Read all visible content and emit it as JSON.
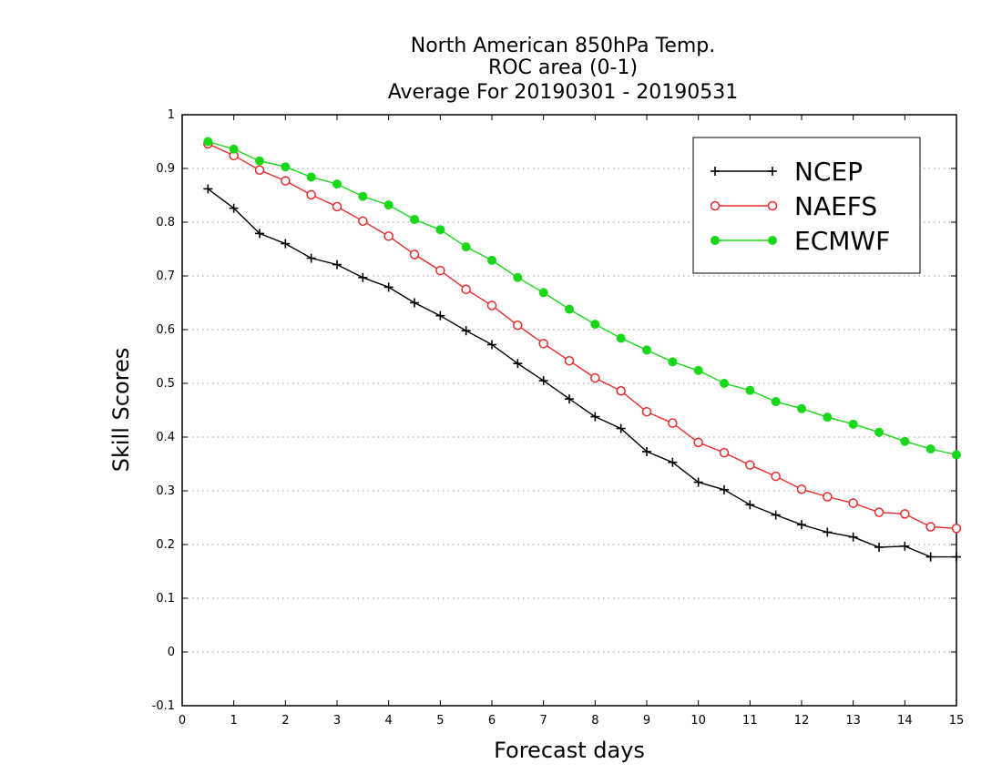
{
  "chart_data": {
    "type": "line",
    "title": [
      "North American 850hPa Temp.",
      "ROC area (0-1)",
      "Average For 20190301 - 20190531"
    ],
    "xlabel": "Forecast days",
    "ylabel": "Skill Scores",
    "xlim": [
      0,
      15
    ],
    "ylim": [
      -0.1,
      1
    ],
    "xticks": [
      "0",
      "1",
      "2",
      "3",
      "4",
      "5",
      "6",
      "7",
      "8",
      "9",
      "10",
      "11",
      "12",
      "13",
      "14",
      "15"
    ],
    "yticks": [
      "-0.1",
      "0",
      "0.1",
      "0.2",
      "0.3",
      "0.4",
      "0.5",
      "0.6",
      "0.7",
      "0.8",
      "0.9",
      "1"
    ],
    "grid": "horizontal dotted",
    "legend_position": "top-right",
    "x": [
      0.5,
      1,
      1.5,
      2,
      2.5,
      3,
      3.5,
      4,
      4.5,
      5,
      5.5,
      6,
      6.5,
      7,
      7.5,
      8,
      8.5,
      9,
      9.5,
      10,
      10.5,
      11,
      11.5,
      12,
      12.5,
      13,
      13.5,
      14,
      14.5,
      15
    ],
    "series": [
      {
        "name": "NCEP",
        "color": "#000000",
        "marker": "plus",
        "values": [
          0.862,
          0.826,
          0.779,
          0.76,
          0.733,
          0.721,
          0.697,
          0.679,
          0.65,
          0.626,
          0.598,
          0.572,
          0.537,
          0.505,
          0.471,
          0.438,
          0.416,
          0.373,
          0.353,
          0.316,
          0.302,
          0.274,
          0.255,
          0.237,
          0.223,
          0.214,
          0.195,
          0.197,
          0.177,
          0.177
        ]
      },
      {
        "name": "NAEFS",
        "color": "#e82c2c",
        "marker": "open-circle",
        "values": [
          0.946,
          0.924,
          0.897,
          0.877,
          0.851,
          0.829,
          0.802,
          0.774,
          0.74,
          0.71,
          0.675,
          0.645,
          0.608,
          0.574,
          0.542,
          0.51,
          0.486,
          0.447,
          0.426,
          0.39,
          0.371,
          0.348,
          0.327,
          0.303,
          0.289,
          0.277,
          0.26,
          0.257,
          0.233,
          0.23
        ]
      },
      {
        "name": "ECMWF",
        "color": "#19d819",
        "marker": "filled-circle",
        "values": [
          0.95,
          0.936,
          0.914,
          0.903,
          0.884,
          0.871,
          0.848,
          0.832,
          0.805,
          0.786,
          0.754,
          0.729,
          0.697,
          0.669,
          0.638,
          0.61,
          0.584,
          0.562,
          0.54,
          0.524,
          0.5,
          0.487,
          0.466,
          0.453,
          0.437,
          0.424,
          0.409,
          0.392,
          0.378,
          0.367
        ]
      }
    ]
  }
}
